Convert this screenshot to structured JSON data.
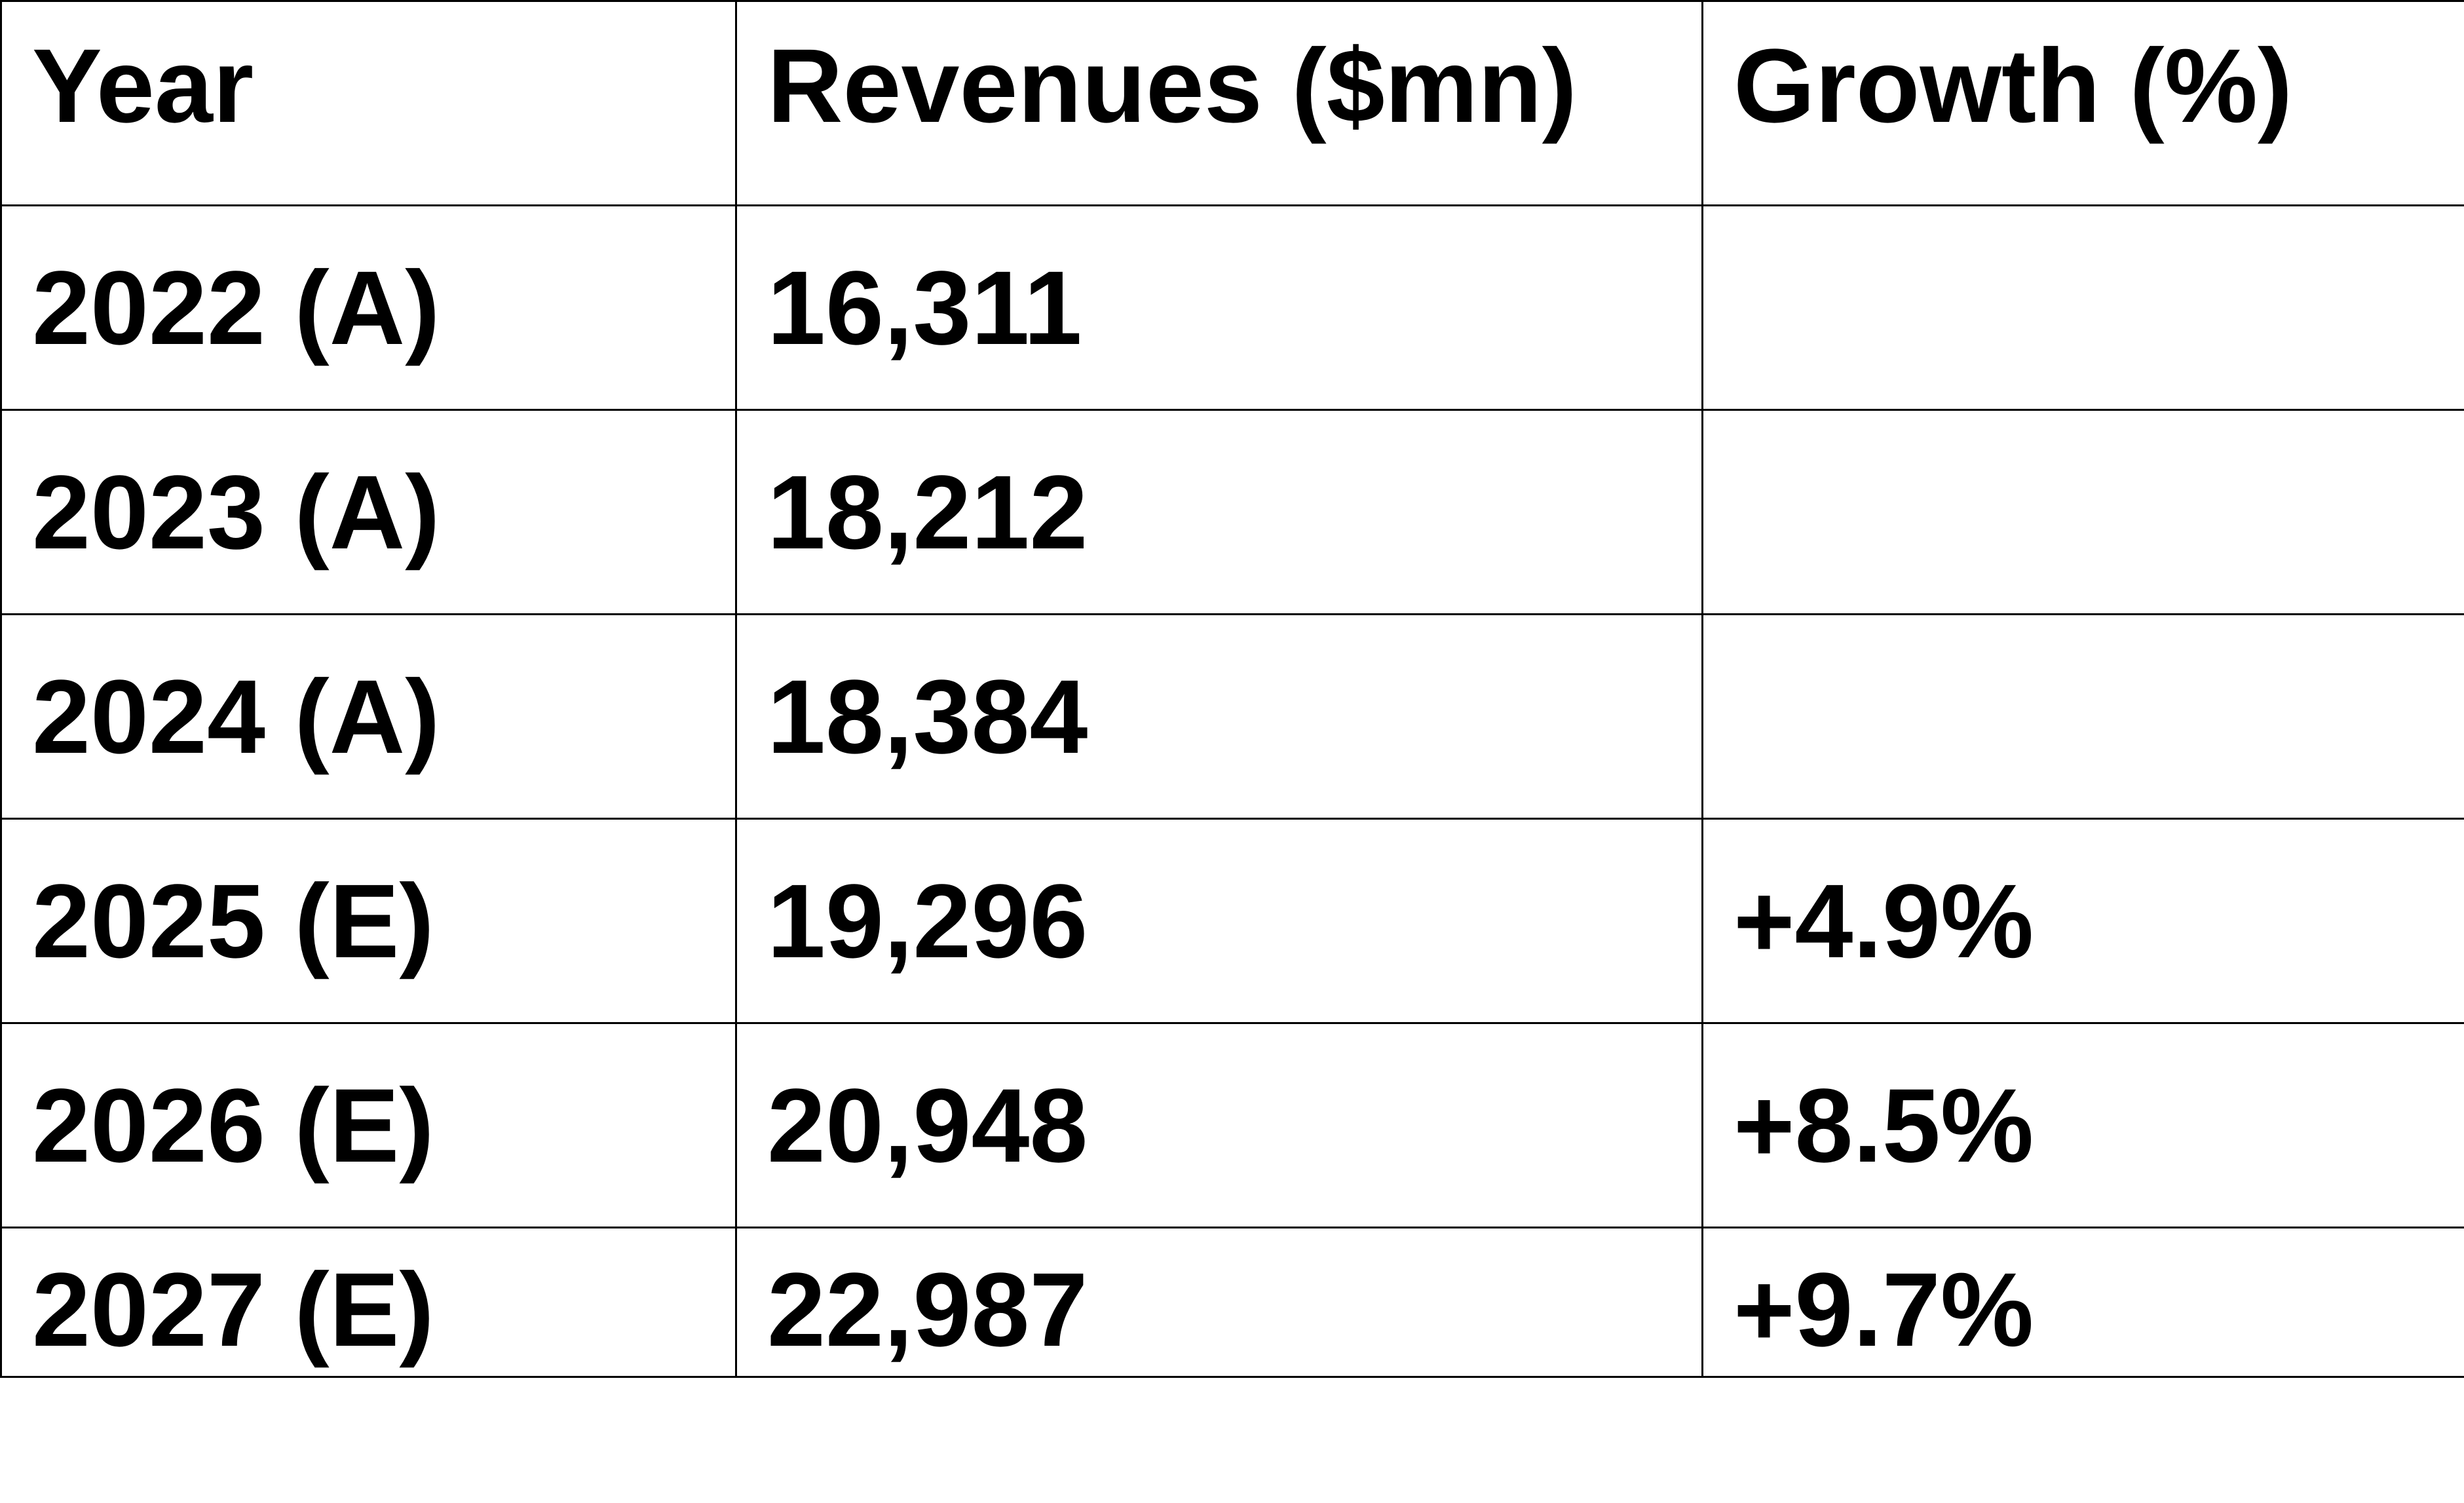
{
  "table": {
    "headers": [
      "Year",
      "Revenues ($mn)",
      "Growth (%)"
    ],
    "rows": [
      [
        "2022 (A)",
        "16,311",
        ""
      ],
      [
        "2023 (A)",
        "18,212",
        ""
      ],
      [
        "2024 (A)",
        "18,384",
        ""
      ],
      [
        "2025 (E)",
        "19,296",
        "+4.9%"
      ],
      [
        "2026 (E)",
        "20,948",
        "+8.5%"
      ],
      [
        "2027 (E)",
        "22,987",
        "+9.7%"
      ]
    ]
  },
  "chart_data": {
    "type": "table",
    "columns": [
      "Year",
      "Revenues ($mn)",
      "Growth (%)"
    ],
    "rows": [
      {
        "year": "2022 (A)",
        "revenues": 16311,
        "growth": null
      },
      {
        "year": "2023 (A)",
        "revenues": 18212,
        "growth": null
      },
      {
        "year": "2024 (A)",
        "revenues": 18384,
        "growth": null
      },
      {
        "year": "2025 (E)",
        "revenues": 19296,
        "growth": 4.9
      },
      {
        "year": "2026 (E)",
        "revenues": 20948,
        "growth": 8.5
      },
      {
        "year": "2027 (E)",
        "revenues": 22987,
        "growth": 9.7
      }
    ]
  }
}
